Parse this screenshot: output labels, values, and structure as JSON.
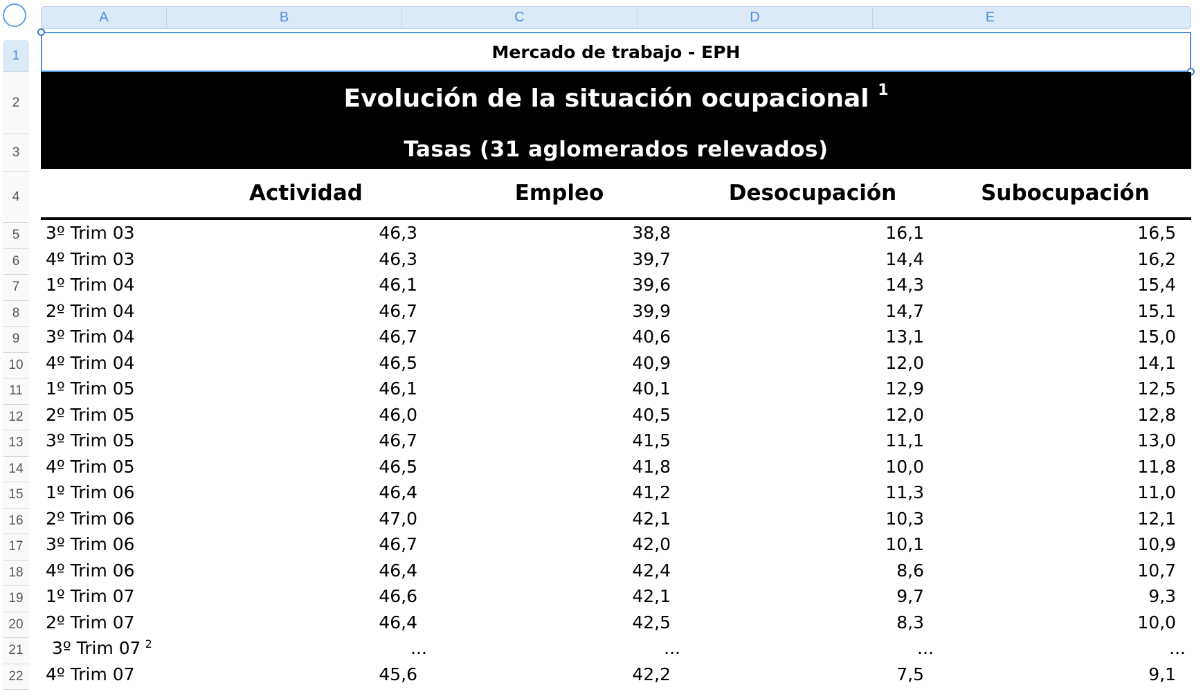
{
  "columns": [
    "A",
    "B",
    "C",
    "D",
    "E"
  ],
  "rows": [
    "1",
    "2",
    "3",
    "4",
    "5",
    "6",
    "7",
    "8",
    "9",
    "10",
    "11",
    "12",
    "13",
    "14",
    "15",
    "16",
    "17",
    "18",
    "19",
    "20",
    "21",
    "22"
  ],
  "sheet_title": "Mercado de trabajo - EPH",
  "banner": {
    "title": "Evolución de la situación ocupacional",
    "title_note": "1",
    "subtitle": "Tasas (31 aglomerados relevados)"
  },
  "table": {
    "headers": [
      "",
      "Actividad",
      "Empleo",
      "Desocupación",
      "Subocupación"
    ],
    "rows": [
      [
        "3º Trim 03",
        "46,3",
        "38,8",
        "16,1",
        "16,5"
      ],
      [
        "4º Trim 03",
        "46,3",
        "39,7",
        "14,4",
        "16,2"
      ],
      [
        "1º Trim 04",
        "46,1",
        "39,6",
        "14,3",
        "15,4"
      ],
      [
        "2º Trim 04",
        "46,7",
        "39,9",
        "14,7",
        "15,1"
      ],
      [
        "3º Trim 04",
        "46,7",
        "40,6",
        "13,1",
        "15,0"
      ],
      [
        "4º Trim 04",
        "46,5",
        "40,9",
        "12,0",
        "14,1"
      ],
      [
        "1º Trim 05",
        "46,1",
        "40,1",
        "12,9",
        "12,5"
      ],
      [
        "2º Trim 05",
        "46,0",
        "40,5",
        "12,0",
        "12,8"
      ],
      [
        "3º Trim 05",
        "46,7",
        "41,5",
        "11,1",
        "13,0"
      ],
      [
        "4º Trim 05",
        "46,5",
        "41,8",
        "10,0",
        "11,8"
      ],
      [
        "1º Trim 06",
        "46,4",
        "41,2",
        "11,3",
        "11,0"
      ],
      [
        "2º Trim 06",
        "47,0",
        "42,1",
        "10,3",
        "12,1"
      ],
      [
        "3º Trim 06",
        "46,7",
        "42,0",
        "10,1",
        "10,9"
      ],
      [
        "4º Trim 06",
        "46,4",
        "42,4",
        "8,6",
        "10,7"
      ],
      [
        "1º Trim 07",
        "46,6",
        "42,1",
        "9,7",
        "9,3"
      ],
      [
        "2º Trim 07",
        "46,4",
        "42,5",
        "8,3",
        "10,0"
      ],
      [
        "3º Trim 07",
        "...",
        "...",
        "...",
        "..."
      ],
      [
        "4º Trim 07",
        "45,6",
        "42,2",
        "7,5",
        "9,1"
      ]
    ],
    "row_21_note": "2"
  }
}
